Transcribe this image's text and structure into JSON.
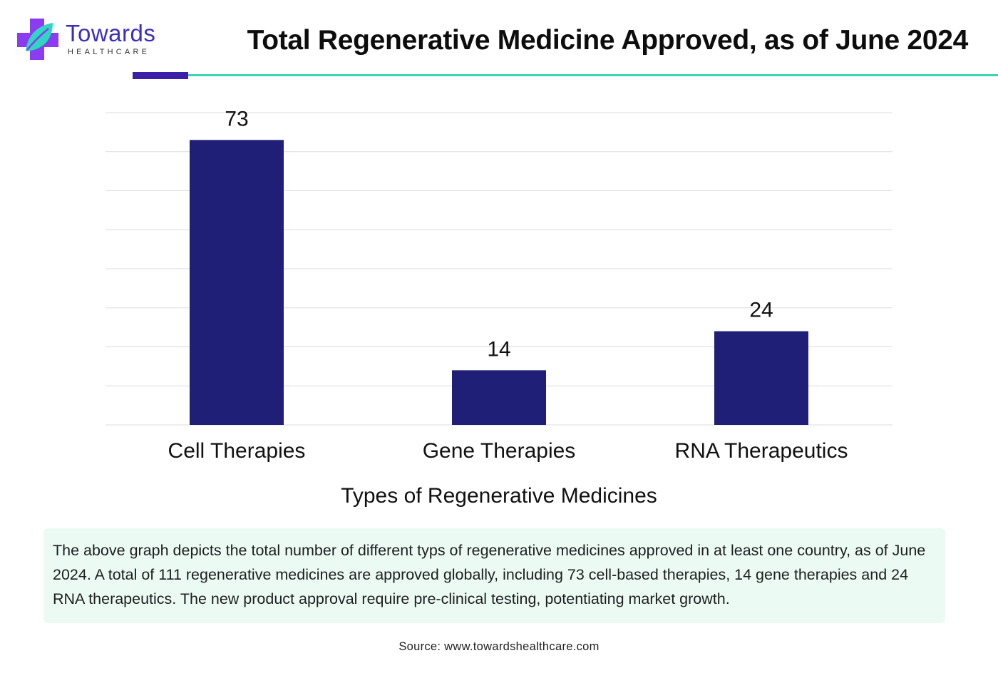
{
  "brand": {
    "name": "Towards",
    "tagline": "HEALTHCARE",
    "colors": {
      "primary": "#3b1fa8",
      "accent": "#3fd2b4",
      "logo_purple": "#8b3cf0",
      "leaf": "#2fd6c1"
    },
    "icon": "medical-cross-leaf-icon"
  },
  "title": "Total Regenerative Medicine Approved, as of June 2024",
  "chart_data": {
    "type": "bar",
    "categories": [
      "Cell Therapies",
      "Gene Therapies",
      "RNA Therapeutics"
    ],
    "values": [
      73,
      14,
      24
    ],
    "data_labels": [
      "73",
      "14",
      "24"
    ],
    "xlabel": "Types of Regenerative Medicines",
    "ylabel": "",
    "ylim": [
      0,
      80
    ],
    "grid": true,
    "y_axis_labels_visible": false,
    "legend": "none",
    "bar_color": "#1f1f78",
    "grid_color": "#dddddd"
  },
  "description": "The above graph depicts the total number of different typs of regenerative medicines approved in at least one country, as of June 2024. A total of 111 regenerative medicines are approved globally, including 73 cell-based therapies, 14 gene therapies and 24 RNA therapeutics. The new product approval require pre-clinical testing, potentiating market growth.",
  "source": "Source: www.towardshealthcare.com"
}
